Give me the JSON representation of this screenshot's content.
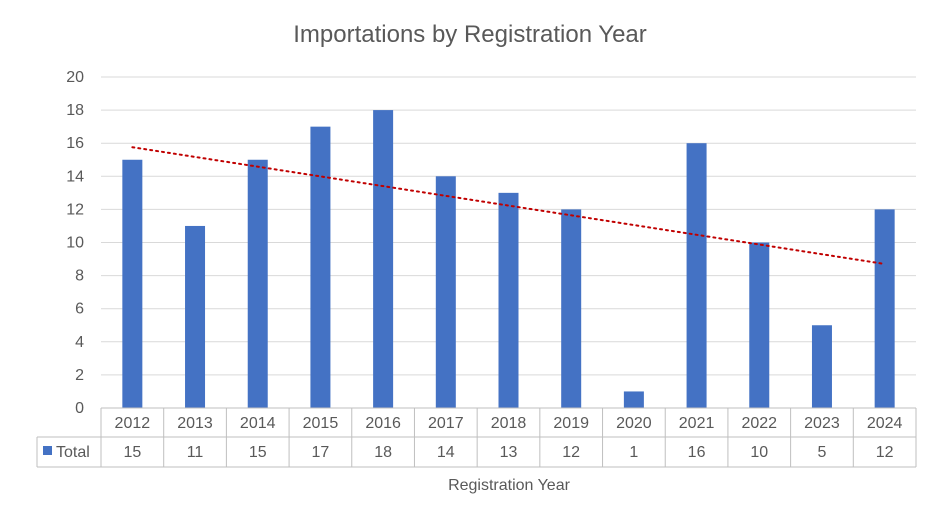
{
  "chart_data": {
    "type": "bar",
    "title": "Importations by Registration Year",
    "xlabel": "Registration Year",
    "ylabel": "",
    "categories": [
      "2012",
      "2013",
      "2014",
      "2015",
      "2016",
      "2017",
      "2018",
      "2019",
      "2020",
      "2021",
      "2022",
      "2023",
      "2024"
    ],
    "series": [
      {
        "name": "Total",
        "values": [
          15,
          11,
          15,
          17,
          18,
          14,
          13,
          12,
          1,
          16,
          10,
          5,
          12
        ],
        "color": "#4472C4"
      }
    ],
    "ylim": [
      0,
      20
    ],
    "yticks": [
      "0",
      "2",
      "4",
      "6",
      "8",
      "10",
      "12",
      "14",
      "16",
      "18",
      "20"
    ],
    "grid": true,
    "legend": "data table",
    "data_table": true,
    "trendline": {
      "type": "linear",
      "style": "dotted",
      "color": "#C00000"
    }
  }
}
